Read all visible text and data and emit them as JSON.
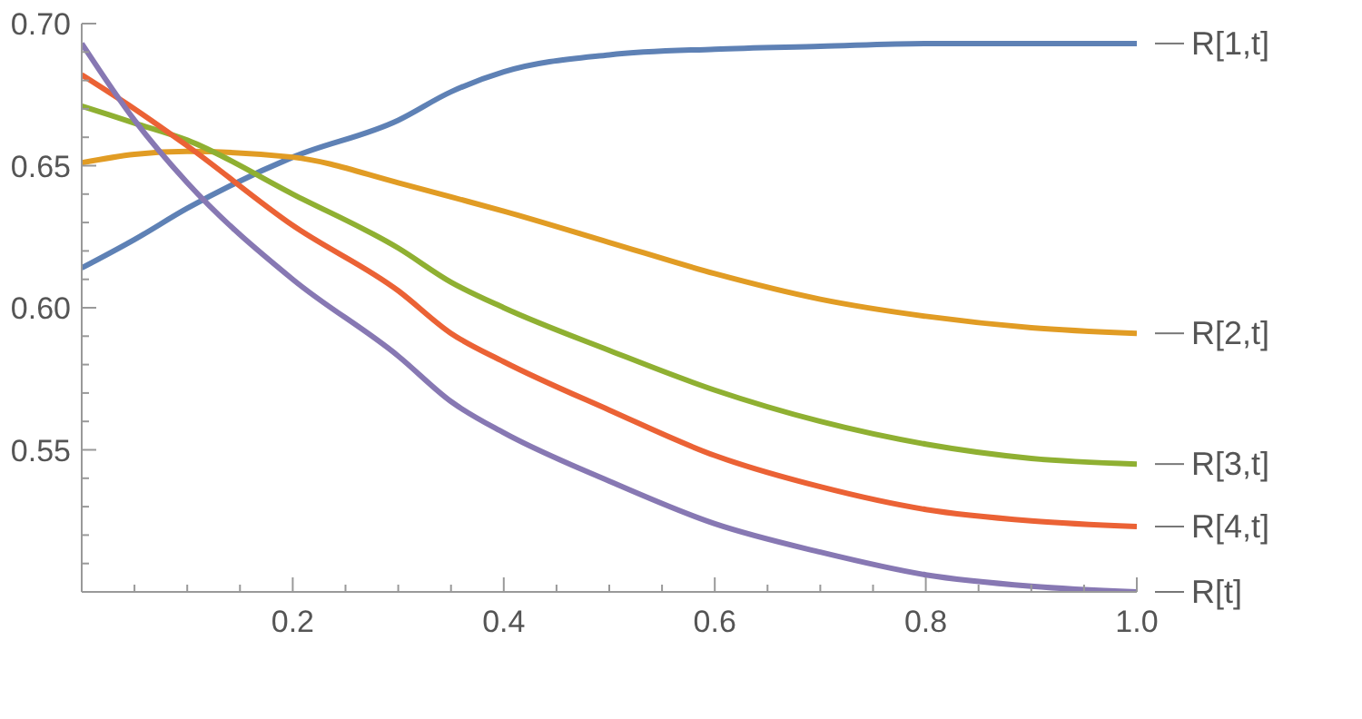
{
  "chart_data": {
    "type": "line",
    "x": [
      0,
      0.05,
      0.1,
      0.2,
      0.3,
      0.35,
      0.4,
      0.5,
      0.6,
      0.7,
      0.8,
      0.9,
      1.0
    ],
    "xlim": [
      0,
      1
    ],
    "ylim": [
      0.5,
      0.7
    ],
    "xticks": [
      {
        "value": 0.05,
        "label": null
      },
      {
        "value": 0.1,
        "label": null
      },
      {
        "value": 0.15,
        "label": null
      },
      0.2,
      {
        "value": 0.25,
        "label": null
      },
      {
        "value": 0.3,
        "label": null
      },
      {
        "value": 0.35,
        "label": null
      },
      0.4,
      {
        "value": 0.45,
        "label": null
      },
      {
        "value": 0.5,
        "label": null
      },
      {
        "value": 0.55,
        "label": null
      },
      0.6,
      {
        "value": 0.65,
        "label": null
      },
      {
        "value": 0.7,
        "label": null
      },
      {
        "value": 0.75,
        "label": null
      },
      0.8,
      {
        "value": 0.85,
        "label": null
      },
      {
        "value": 0.9,
        "label": null
      },
      {
        "value": 0.95,
        "label": null
      },
      {
        "value": 1,
        "label": "1.0"
      }
    ],
    "yticks": [
      {
        "value": 0.51,
        "label": null
      },
      {
        "value": 0.52,
        "label": null
      },
      {
        "value": 0.53,
        "label": null
      },
      {
        "value": 0.54,
        "label": null
      },
      0.55,
      {
        "value": 0.56,
        "label": null
      },
      {
        "value": 0.57,
        "label": null
      },
      {
        "value": 0.58,
        "label": null
      },
      {
        "value": 0.59,
        "label": null
      },
      {
        "value": 0.6,
        "label": "0.60"
      },
      {
        "value": 0.61,
        "label": null
      },
      {
        "value": 0.62,
        "label": null
      },
      {
        "value": 0.63,
        "label": null
      },
      {
        "value": 0.64,
        "label": null
      },
      0.65,
      {
        "value": 0.66,
        "label": null
      },
      {
        "value": 0.67,
        "label": null
      },
      {
        "value": 0.68,
        "label": null
      },
      {
        "value": 0.69,
        "label": null
      },
      {
        "value": 0.7,
        "label": "0.70"
      }
    ],
    "grid": false,
    "legend": false,
    "marker": "none",
    "line_style": "solid",
    "series": [
      {
        "name": "R[1,t]",
        "color": "#5e81b5",
        "values": [
          0.614,
          0.624,
          0.635,
          0.653,
          0.666,
          0.676,
          0.683,
          0.689,
          0.691,
          0.692,
          0.693,
          0.693,
          0.693
        ]
      },
      {
        "name": "R[2,t]",
        "color": "#e19c24",
        "values": [
          0.651,
          0.654,
          0.655,
          0.653,
          0.644,
          0.639,
          0.634,
          0.623,
          0.612,
          0.603,
          0.597,
          0.593,
          0.591
        ]
      },
      {
        "name": "R[3,t]",
        "color": "#8fb032",
        "values": [
          0.671,
          0.665,
          0.659,
          0.64,
          0.621,
          0.609,
          0.6,
          0.585,
          0.571,
          0.56,
          0.552,
          0.547,
          0.545
        ]
      },
      {
        "name": "R[4,t]",
        "color": "#eb6235",
        "values": [
          0.682,
          0.67,
          0.657,
          0.629,
          0.606,
          0.591,
          0.581,
          0.564,
          0.548,
          0.537,
          0.529,
          0.525,
          0.523
        ]
      },
      {
        "name": "R[t]",
        "color": "#8778b3",
        "values": [
          0.693,
          0.666,
          0.644,
          0.61,
          0.583,
          0.567,
          0.556,
          0.539,
          0.524,
          0.514,
          0.506,
          0.502,
          0.5
        ]
      }
    ]
  }
}
